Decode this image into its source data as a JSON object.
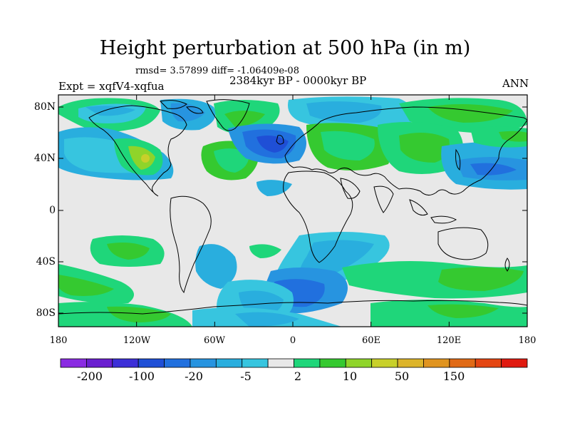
{
  "title": "Height perturbation at 500 hPa (in m)",
  "stats_line": "rmsd= 3.57899 diff= -1.06409e-08",
  "experiment": "Expt = xqfV4-xqfua",
  "period": "2384kyr BP - 0000kyr BP",
  "season": "ANN",
  "lat_ticks": [
    "80N",
    "40N",
    "0",
    "40S",
    "80S"
  ],
  "lon_ticks": [
    "180",
    "120W",
    "60W",
    "0",
    "60E",
    "120E",
    "180"
  ],
  "colorbar": {
    "labels": [
      "-200",
      "-100",
      "-20",
      "-5",
      "2",
      "10",
      "50",
      "150"
    ],
    "colors": [
      "#8a2be2",
      "#6a1fd0",
      "#3d2fd8",
      "#1f4fd6",
      "#2170de",
      "#2794e0",
      "#29aede",
      "#37c5df",
      "#e8e8e8",
      "#1fd67a",
      "#35c930",
      "#8fd42a",
      "#c8d02a",
      "#dcb42a",
      "#e09420",
      "#e06a16",
      "#e44612",
      "#e01a10"
    ]
  }
}
